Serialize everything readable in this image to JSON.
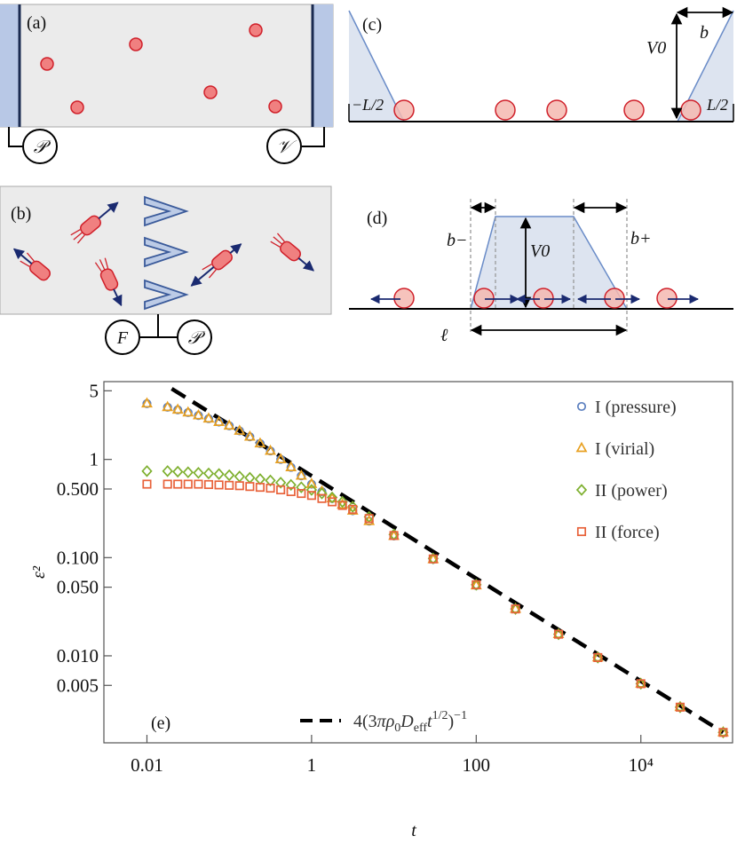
{
  "panels": {
    "a": {
      "label": "(a)",
      "gauge_left": "𝒫",
      "gauge_right": "𝒱"
    },
    "b": {
      "label": "(b)",
      "gauge_left": "F",
      "gauge_right": "𝒫"
    },
    "c": {
      "label": "(c)",
      "height_label": "V0",
      "width_label": "b",
      "left_wall": "−L/2",
      "right_wall": "L/2"
    },
    "d": {
      "label": "(d)",
      "b_minus": "b−",
      "b_plus": "b+",
      "height_label": "V0",
      "length_label": "ℓ"
    },
    "e": {
      "label": "(e)"
    }
  },
  "colors": {
    "particle_fill": "#f08080",
    "particle_stroke": "#d0202a",
    "wall_fill": "#b8c8e6",
    "potential_fill": "#dde4f0",
    "potential_line": "#6a8cc8",
    "arrow": "#1a2a70",
    "pressure": "#5b7fbf",
    "virial": "#e8a020",
    "power": "#7fb030",
    "force": "#e8623a",
    "theory": "#000000"
  },
  "chart_data": {
    "type": "scatter",
    "xscale": "log",
    "yscale": "log",
    "xlim": [
      0.003,
      130000
    ],
    "ylim": [
      0.0013,
      6.2
    ],
    "xlabel": "t",
    "ylabel": "ε²",
    "xticks": [
      {
        "value": 0.01,
        "label": "0.01"
      },
      {
        "value": 1,
        "label": "1"
      },
      {
        "value": 100,
        "label": "100"
      },
      {
        "value": 10000,
        "label": "10⁴"
      }
    ],
    "yticks": [
      {
        "value": 5,
        "label": "5"
      },
      {
        "value": 1,
        "label": "1"
      },
      {
        "value": 0.5,
        "label": "0.500"
      },
      {
        "value": 0.1,
        "label": "0.100"
      },
      {
        "value": 0.05,
        "label": "0.050"
      },
      {
        "value": 0.01,
        "label": "0.010"
      },
      {
        "value": 0.005,
        "label": "0.005"
      }
    ],
    "series": [
      {
        "name": "I (pressure)",
        "marker": "circle",
        "color": "#5b7fbf",
        "x": [
          0.01,
          0.0178,
          0.0237,
          0.0316,
          0.0422,
          0.0562,
          0.075,
          0.1,
          0.1334,
          0.1778,
          0.237,
          0.316,
          0.4217,
          0.5623,
          0.75,
          1,
          1.334,
          1.778,
          2.37,
          3.16,
          5,
          10,
          30,
          100,
          300,
          1000,
          3000,
          10000,
          30000,
          100000
        ],
        "y": [
          3.7,
          3.4,
          3.2,
          3.0,
          2.8,
          2.6,
          2.4,
          2.2,
          1.95,
          1.7,
          1.45,
          1.22,
          1.0,
          0.83,
          0.68,
          0.56,
          0.47,
          0.4,
          0.345,
          0.3,
          0.235,
          0.166,
          0.096,
          0.052,
          0.03,
          0.0166,
          0.0096,
          0.0052,
          0.003,
          0.00166
        ]
      },
      {
        "name": "I (virial)",
        "marker": "triangle",
        "color": "#e8a020",
        "x": [
          0.01,
          0.0178,
          0.0237,
          0.0316,
          0.0422,
          0.0562,
          0.075,
          0.1,
          0.1334,
          0.1778,
          0.237,
          0.316,
          0.4217,
          0.5623,
          0.75,
          1,
          1.334,
          1.778,
          2.37,
          3.16,
          5,
          10,
          30,
          100,
          300,
          1000,
          3000,
          10000,
          30000,
          100000
        ],
        "y": [
          3.7,
          3.4,
          3.2,
          3.0,
          2.8,
          2.6,
          2.4,
          2.2,
          1.95,
          1.7,
          1.45,
          1.22,
          1.0,
          0.83,
          0.68,
          0.56,
          0.47,
          0.4,
          0.345,
          0.3,
          0.235,
          0.166,
          0.096,
          0.052,
          0.03,
          0.0166,
          0.0096,
          0.0052,
          0.003,
          0.00166
        ]
      },
      {
        "name": "II (power)",
        "marker": "diamond",
        "color": "#7fb030",
        "x": [
          0.01,
          0.0178,
          0.0237,
          0.0316,
          0.0422,
          0.0562,
          0.075,
          0.1,
          0.1334,
          0.1778,
          0.237,
          0.316,
          0.4217,
          0.5623,
          0.75,
          1,
          1.334,
          1.778,
          2.37,
          3.16,
          5,
          10,
          30,
          100,
          300,
          1000,
          3000,
          10000,
          30000,
          100000
        ],
        "y": [
          0.76,
          0.76,
          0.75,
          0.74,
          0.73,
          0.72,
          0.71,
          0.69,
          0.67,
          0.65,
          0.63,
          0.61,
          0.58,
          0.55,
          0.52,
          0.49,
          0.45,
          0.41,
          0.37,
          0.33,
          0.26,
          0.172,
          0.098,
          0.053,
          0.03,
          0.0166,
          0.0096,
          0.0052,
          0.003,
          0.00166
        ]
      },
      {
        "name": "II (force)",
        "marker": "square",
        "color": "#e8623a",
        "x": [
          0.01,
          0.0178,
          0.0237,
          0.0316,
          0.0422,
          0.0562,
          0.075,
          0.1,
          0.1334,
          0.1778,
          0.237,
          0.316,
          0.4217,
          0.5623,
          0.75,
          1,
          1.334,
          1.778,
          2.37,
          3.16,
          5,
          10,
          30,
          100,
          300,
          1000,
          3000,
          10000,
          30000,
          100000
        ],
        "y": [
          0.56,
          0.56,
          0.56,
          0.56,
          0.56,
          0.555,
          0.55,
          0.545,
          0.54,
          0.53,
          0.52,
          0.51,
          0.49,
          0.47,
          0.45,
          0.43,
          0.4,
          0.37,
          0.34,
          0.31,
          0.25,
          0.168,
          0.097,
          0.053,
          0.03,
          0.0166,
          0.0096,
          0.0052,
          0.003,
          0.00166
        ]
      }
    ],
    "theory": {
      "name": "4(3πρ0Defft1/2)−1",
      "style": "dashed",
      "color": "#000000",
      "x": [
        0.02,
        100000
      ],
      "y": [
        5.25,
        0.00166
      ]
    },
    "legend_position": "top-right",
    "annotation": "(e)"
  }
}
